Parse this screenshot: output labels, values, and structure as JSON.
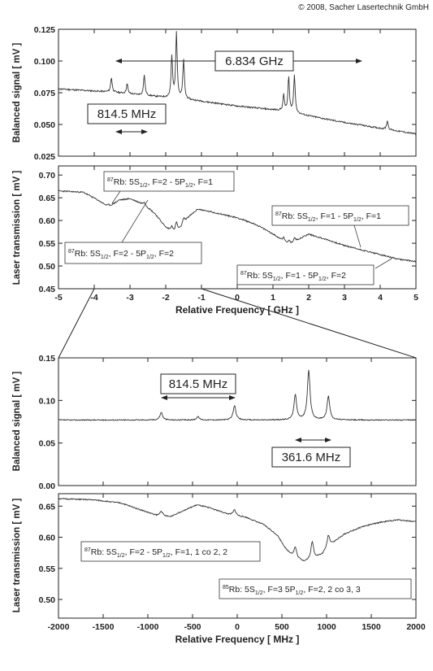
{
  "copyright": "© 2008, Sacher Lasertechnik GmbH",
  "chart_data": [
    {
      "type": "line",
      "panel": "top-balanced",
      "ylabel": "Balanced signal [ mV ]",
      "xlim": [
        -5,
        5
      ],
      "ylim": [
        0.025,
        0.125
      ],
      "yticks": [
        "0.025",
        "0.050",
        "0.075",
        "0.100",
        "0.125"
      ],
      "baseline": [
        [
          -5,
          0.078
        ],
        [
          -3.5,
          0.0755
        ],
        [
          -1.2,
          0.069
        ],
        [
          0,
          0.0645
        ],
        [
          1.2,
          0.061
        ],
        [
          3,
          0.0515
        ],
        [
          5,
          0.0425
        ]
      ],
      "peaks": [
        [
          -3.52,
          0.087
        ],
        [
          -3.08,
          0.082
        ],
        [
          -2.6,
          0.089
        ],
        [
          -1.83,
          0.103
        ],
        [
          -1.7,
          0.122
        ],
        [
          -1.5,
          0.101
        ],
        [
          1.3,
          0.073
        ],
        [
          1.44,
          0.087
        ],
        [
          1.6,
          0.089
        ],
        [
          3.45,
          0.05
        ],
        [
          4.2,
          0.053
        ]
      ],
      "annotations": [
        "6.834 GHz",
        "814.5 MHz"
      ]
    },
    {
      "type": "line",
      "panel": "top-transmission",
      "ylabel": "Laser transmission [ mV ]",
      "xlabel": "Relative Frequency [ GHz ]",
      "xlim": [
        -5,
        5
      ],
      "ylim": [
        0.45,
        0.72
      ],
      "yticks": [
        "0.45",
        "0.50",
        "0.55",
        "0.60",
        "0.65",
        "0.70"
      ],
      "xticks": [
        "-5",
        "-4",
        "-3",
        "-2",
        "-1",
        "0",
        "1",
        "2",
        "3",
        "4",
        "5"
      ],
      "curve": [
        [
          -5,
          0.665
        ],
        [
          -4.3,
          0.662
        ],
        [
          -3.9,
          0.645
        ],
        [
          -3.6,
          0.63
        ],
        [
          -3.3,
          0.645
        ],
        [
          -3,
          0.648
        ],
        [
          -2.6,
          0.635
        ],
        [
          -2.3,
          0.615
        ],
        [
          -2,
          0.585
        ],
        [
          -1.8,
          0.575
        ],
        [
          -1.6,
          0.582
        ],
        [
          -1.4,
          0.605
        ],
        [
          -1.1,
          0.625
        ],
        [
          -0.5,
          0.615
        ],
        [
          0,
          0.606
        ],
        [
          0.5,
          0.592
        ],
        [
          0.9,
          0.575
        ],
        [
          1.2,
          0.56
        ],
        [
          1.45,
          0.545
        ],
        [
          1.7,
          0.558
        ],
        [
          2,
          0.57
        ],
        [
          2.5,
          0.558
        ],
        [
          3,
          0.545
        ],
        [
          3.5,
          0.535
        ],
        [
          4,
          0.525
        ],
        [
          4.5,
          0.515
        ],
        [
          5,
          0.51
        ]
      ],
      "annotations": [
        {
          "pre": "87",
          "a": "Rb: 5S",
          "s1": "1/2",
          "b": ", F=2 - 5P",
          "s2": "1/2",
          "c": ", F=1"
        },
        {
          "pre": "87",
          "a": "Rb: 5S",
          "s1": "1/2",
          "b": ", F=2 - 5P",
          "s2": "1/2",
          "c": ", F=2"
        },
        {
          "pre": "87",
          "a": "Rb: 5S",
          "s1": "1/2",
          "b": ", F=1 - 5P",
          "s2": "1/2",
          "c": ", F=1"
        },
        {
          "pre": "87",
          "a": "Rb: 5S",
          "s1": "1/2",
          "b": ", F=1 - 5P",
          "s2": "1/2",
          "c": ", F=2"
        }
      ]
    },
    {
      "type": "line",
      "panel": "bottom-balanced",
      "ylabel": "Balanced signal [ mV ]",
      "xlim": [
        -2000,
        2000
      ],
      "ylim": [
        0.0,
        0.15
      ],
      "yticks": [
        "0.00",
        "0.05",
        "0.10",
        "0.15"
      ],
      "baseline": 0.077,
      "peaks": [
        [
          -850,
          0.086
        ],
        [
          -440,
          0.081
        ],
        [
          -30,
          0.094
        ],
        [
          650,
          0.106
        ],
        [
          800,
          0.135
        ],
        [
          1020,
          0.105
        ]
      ],
      "annotations": [
        "814.5 MHz",
        "361.6 MHz"
      ]
    },
    {
      "type": "line",
      "panel": "bottom-transmission",
      "ylabel": "Laser transmission [ mV ]",
      "xlabel": "Relative Frequency [ MHz ]",
      "xlim": [
        -2000,
        2000
      ],
      "ylim": [
        0.47,
        0.67
      ],
      "yticks": [
        "0.50",
        "0.55",
        "0.60",
        "0.65"
      ],
      "xticks": [
        "-2000",
        "-1500",
        "-1000",
        "-500",
        "0",
        "500",
        "1000",
        "1500",
        "2000"
      ],
      "curve": [
        [
          -2000,
          0.662
        ],
        [
          -1600,
          0.66
        ],
        [
          -1300,
          0.655
        ],
        [
          -1100,
          0.645
        ],
        [
          -900,
          0.635
        ],
        [
          -750,
          0.633
        ],
        [
          -600,
          0.643
        ],
        [
          -450,
          0.652
        ],
        [
          -300,
          0.647
        ],
        [
          -100,
          0.637
        ],
        [
          100,
          0.632
        ],
        [
          300,
          0.62
        ],
        [
          450,
          0.603
        ],
        [
          550,
          0.58
        ],
        [
          650,
          0.566
        ],
        [
          750,
          0.561
        ],
        [
          850,
          0.565
        ],
        [
          950,
          0.572
        ],
        [
          1050,
          0.588
        ],
        [
          1200,
          0.605
        ],
        [
          1400,
          0.617
        ],
        [
          1600,
          0.624
        ],
        [
          1800,
          0.628
        ],
        [
          2000,
          0.625
        ]
      ],
      "dips": [
        [
          -850,
          0.0
        ],
        [
          -30,
          0.0
        ]
      ],
      "annotations": [
        {
          "pre": "87",
          "a": "Rb: 5S",
          "s1": "1/2",
          "b": ", F=2 - 5P",
          "s2": "1/2",
          "c": ", F=1, 1 co 2, 2"
        },
        {
          "pre": "85",
          "a": "Rb: 5S",
          "s1": "1/2",
          "b": ", F=3    5P",
          "s2": "1/2",
          "c": ", F=2, 2 co 3, 3"
        }
      ]
    }
  ]
}
